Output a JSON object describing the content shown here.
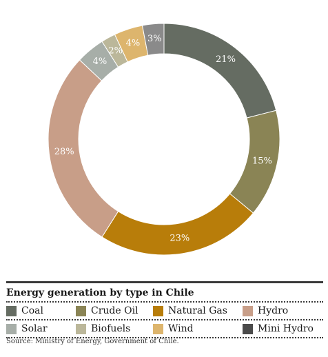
{
  "chart_data": {
    "type": "pie",
    "title": "Energy generation by type in Chile",
    "categories": [
      "Coal",
      "Crude Oil",
      "Natural Gas",
      "Hydro",
      "Solar",
      "Biofuels",
      "Wind",
      "Mini Hydro"
    ],
    "values": [
      21,
      15,
      23,
      28,
      4,
      2,
      4,
      3
    ],
    "labels": [
      "21%",
      "15%",
      "23%",
      "28%",
      "4%",
      "2%",
      "4%",
      "3%"
    ],
    "colors": [
      "#656c62",
      "#8a8455",
      "#b87d0a",
      "#c89e88",
      "#a7aea8",
      "#bbb79a",
      "#ddb56d",
      "#8a8a8a"
    ],
    "legend_colors": [
      "#656c62",
      "#8a8455",
      "#b87d0a",
      "#c89e88",
      "#a7aea8",
      "#bbb79a",
      "#ddb56d",
      "#4a4a4a"
    ],
    "legend_position": "bottom"
  },
  "legend": {
    "title": "Energy generation by type in Chile"
  },
  "source": "Source: Ministry of Energy, Government of Chile."
}
